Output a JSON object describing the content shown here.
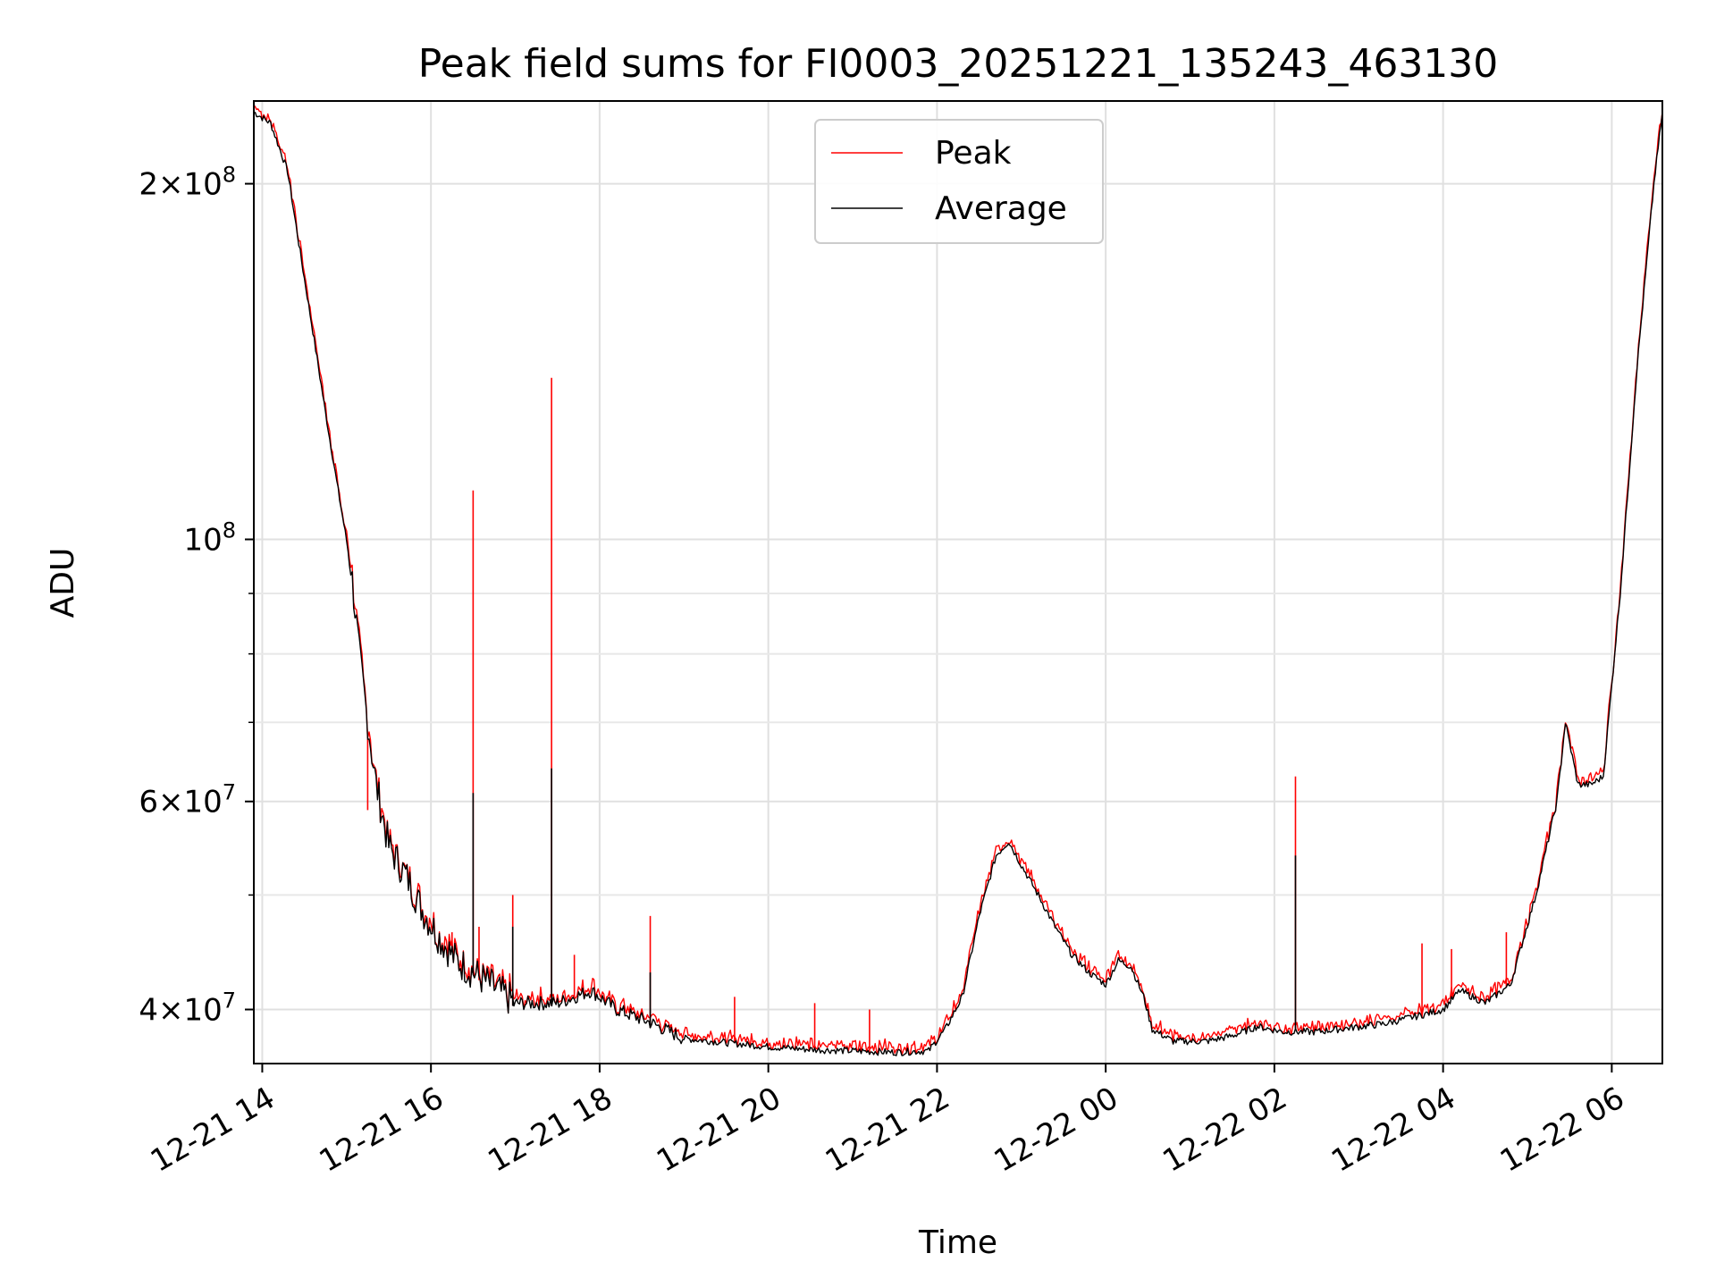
{
  "chart_data": {
    "type": "line",
    "title": "Peak field sums for FI0003_20251221_135243_463130",
    "xlabel": "Time",
    "ylabel": "ADU",
    "yscale": "log",
    "ylim": [
      36000000,
      235000000
    ],
    "xlim_hours": [
      13.9,
      30.6
    ],
    "grid": true,
    "legend_position": "upper-center",
    "x_tick_labels": [
      {
        "hour": 14,
        "label": "12-21 14"
      },
      {
        "hour": 16,
        "label": "12-21 16"
      },
      {
        "hour": 18,
        "label": "12-21 18"
      },
      {
        "hour": 20,
        "label": "12-21 20"
      },
      {
        "hour": 22,
        "label": "12-21 22"
      },
      {
        "hour": 24,
        "label": "12-22 00"
      },
      {
        "hour": 26,
        "label": "12-22 02"
      },
      {
        "hour": 28,
        "label": "12-22 04"
      },
      {
        "hour": 30,
        "label": "12-22 06"
      }
    ],
    "y_major_ticks": [
      {
        "value": 40000000,
        "base": "4×10",
        "exp": "7"
      },
      {
        "value": 60000000,
        "base": "6×10",
        "exp": "7"
      },
      {
        "value": 100000000,
        "base": "10",
        "exp": "8"
      },
      {
        "value": 200000000,
        "base": "2×10",
        "exp": "8"
      }
    ],
    "y_minor_ticks": [
      50000000,
      70000000,
      80000000,
      90000000
    ],
    "series": [
      {
        "name": "Peak",
        "color": "#ff0000",
        "spikes": [
          {
            "x": 16.5,
            "y": 110000000
          },
          {
            "x": 17.43,
            "y": 137000000
          },
          {
            "x": 26.25,
            "y": 63000000
          },
          {
            "x": 15.25,
            "y": 59000000
          },
          {
            "x": 15.7,
            "y": 53000000
          },
          {
            "x": 16.25,
            "y": 46500000
          },
          {
            "x": 16.57,
            "y": 47000000
          },
          {
            "x": 16.97,
            "y": 50000000
          },
          {
            "x": 17.7,
            "y": 44500000
          },
          {
            "x": 18.6,
            "y": 48000000
          },
          {
            "x": 19.6,
            "y": 41000000
          },
          {
            "x": 20.55,
            "y": 40500000
          },
          {
            "x": 21.2,
            "y": 40000000
          },
          {
            "x": 27.75,
            "y": 45500000
          },
          {
            "x": 28.75,
            "y": 46500000
          },
          {
            "x": 28.1,
            "y": 45000000
          }
        ]
      },
      {
        "name": "Average",
        "color": "#000000",
        "points": [
          [
            13.9,
            230000000
          ],
          [
            14.1,
            225000000
          ],
          [
            14.3,
            205000000
          ],
          [
            14.45,
            175000000
          ],
          [
            14.6,
            150000000
          ],
          [
            14.75,
            128000000
          ],
          [
            14.9,
            110000000
          ],
          [
            15.05,
            95000000
          ],
          [
            15.15,
            80000000
          ],
          [
            15.25,
            70000000
          ],
          [
            15.35,
            62000000
          ],
          [
            15.5,
            55000000
          ],
          [
            15.7,
            52000000
          ],
          [
            15.9,
            48500000
          ],
          [
            16.1,
            46000000
          ],
          [
            16.3,
            44000000
          ],
          [
            16.6,
            42500000
          ],
          [
            17.0,
            40500000
          ],
          [
            17.5,
            40500000
          ],
          [
            17.9,
            41500000
          ],
          [
            18.2,
            40000000
          ],
          [
            18.6,
            39000000
          ],
          [
            19.0,
            37800000
          ],
          [
            19.5,
            37500000
          ],
          [
            20.0,
            37200000
          ],
          [
            20.5,
            37000000
          ],
          [
            21.0,
            36900000
          ],
          [
            21.5,
            36800000
          ],
          [
            21.9,
            36900000
          ],
          [
            22.1,
            38500000
          ],
          [
            22.3,
            41000000
          ],
          [
            22.5,
            48000000
          ],
          [
            22.7,
            54000000
          ],
          [
            22.85,
            55500000
          ],
          [
            23.0,
            53000000
          ],
          [
            23.2,
            50000000
          ],
          [
            23.4,
            47000000
          ],
          [
            23.6,
            44500000
          ],
          [
            23.8,
            43000000
          ],
          [
            24.0,
            42000000
          ],
          [
            24.15,
            44000000
          ],
          [
            24.3,
            43500000
          ],
          [
            24.45,
            41000000
          ],
          [
            24.55,
            38500000
          ],
          [
            24.8,
            37600000
          ],
          [
            25.2,
            37600000
          ],
          [
            25.5,
            38000000
          ],
          [
            25.8,
            38700000
          ],
          [
            26.1,
            38300000
          ],
          [
            26.5,
            38300000
          ],
          [
            26.9,
            38600000
          ],
          [
            27.3,
            38900000
          ],
          [
            27.7,
            39500000
          ],
          [
            28.0,
            40000000
          ],
          [
            28.2,
            41500000
          ],
          [
            28.5,
            40500000
          ],
          [
            28.8,
            42000000
          ],
          [
            29.1,
            50000000
          ],
          [
            29.35,
            60000000
          ],
          [
            29.45,
            70000000
          ],
          [
            29.6,
            62000000
          ],
          [
            29.75,
            62000000
          ],
          [
            29.9,
            63000000
          ],
          [
            30.1,
            90000000
          ],
          [
            30.3,
            140000000
          ],
          [
            30.5,
            200000000
          ],
          [
            30.6,
            230000000
          ]
        ]
      }
    ]
  }
}
